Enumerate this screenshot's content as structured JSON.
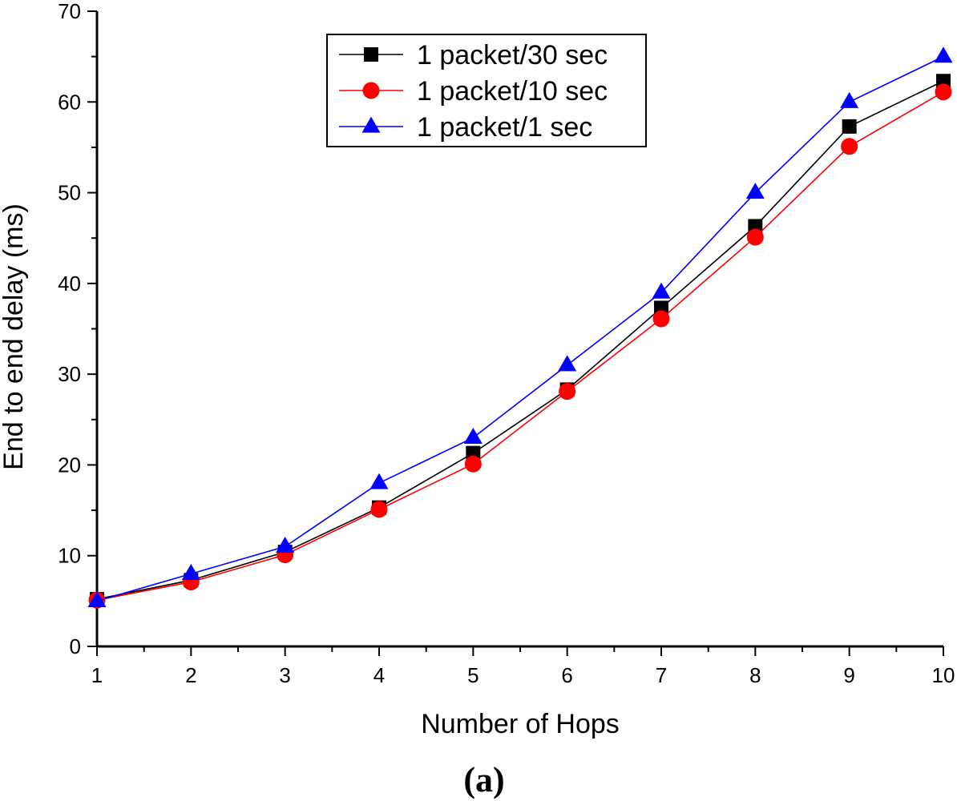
{
  "chart_data": {
    "type": "line",
    "caption": "(a)",
    "xlabel": "Number of Hops",
    "ylabel": "End to end delay (ms)",
    "xlim": [
      1,
      10
    ],
    "ylim": [
      0,
      70
    ],
    "x": [
      1,
      2,
      3,
      4,
      5,
      6,
      7,
      8,
      9,
      10
    ],
    "x_tick_labels": [
      "1",
      "2",
      "3",
      "4",
      "5",
      "6",
      "7",
      "8",
      "9",
      "10"
    ],
    "y_tick_labels": [
      "0",
      "10",
      "20",
      "30",
      "40",
      "50",
      "60",
      "70"
    ],
    "grid": false,
    "legend_position": "top-right",
    "series": [
      {
        "name": "1 packet/30 sec",
        "color": "#000000",
        "marker": "square",
        "values": [
          5.2,
          7.3,
          10.4,
          15.3,
          21.3,
          28.3,
          37.3,
          46.3,
          57.3,
          62.3
        ]
      },
      {
        "name": "1 packet/10 sec",
        "color": "#ff0000",
        "marker": "circle",
        "values": [
          5.1,
          7.1,
          10.1,
          15.1,
          20.1,
          28.1,
          36.1,
          45.1,
          55.1,
          61.1
        ]
      },
      {
        "name": "1 packet/1 sec",
        "color": "#0000ff",
        "marker": "triangle",
        "values": [
          5.0,
          8.0,
          11.0,
          18.0,
          23.0,
          31.0,
          39.0,
          50.0,
          60.0,
          65.0
        ]
      }
    ]
  }
}
